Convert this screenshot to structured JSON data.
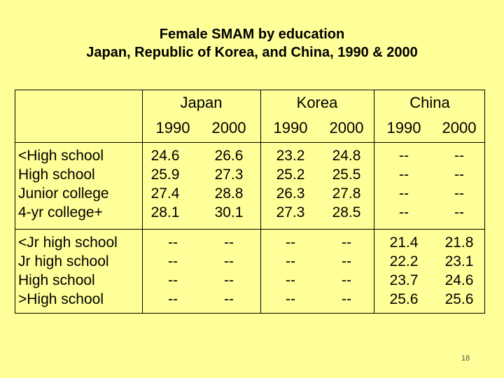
{
  "title": {
    "line1": "Female SMAM by education",
    "line2": "Japan, Republic of Korea, and China, 1990 & 2000"
  },
  "table": {
    "countries": [
      "Japan",
      "Korea",
      "China"
    ],
    "years": [
      "1990",
      "2000",
      "1990",
      "2000",
      "1990",
      "2000"
    ],
    "groups": [
      {
        "labels": [
          "<High school",
          "High school",
          "Junior college",
          "4-yr college+"
        ],
        "columns": [
          [
            "24.6",
            "25.9",
            "27.4",
            "28.1"
          ],
          [
            "26.6",
            "27.3",
            "28.8",
            "30.1"
          ],
          [
            "23.2",
            "25.2",
            "26.3",
            "27.3"
          ],
          [
            "24.8",
            "25.5",
            "27.8",
            "28.5"
          ],
          [
            "--",
            "--",
            "--",
            "--"
          ],
          [
            "--",
            "--",
            "--",
            "--"
          ]
        ]
      },
      {
        "labels": [
          "<Jr high school",
          "Jr high school",
          "High school",
          ">High school"
        ],
        "columns": [
          [
            "--",
            "--",
            "--",
            "--"
          ],
          [
            "--",
            "--",
            "--",
            "--"
          ],
          [
            "--",
            "--",
            "--",
            "--"
          ],
          [
            "--",
            "--",
            "--",
            "--"
          ],
          [
            "21.4",
            "22.2",
            "23.7",
            "25.6"
          ],
          [
            "21.8",
            "23.1",
            "24.6",
            "25.6"
          ]
        ]
      }
    ]
  },
  "page_number": "18"
}
